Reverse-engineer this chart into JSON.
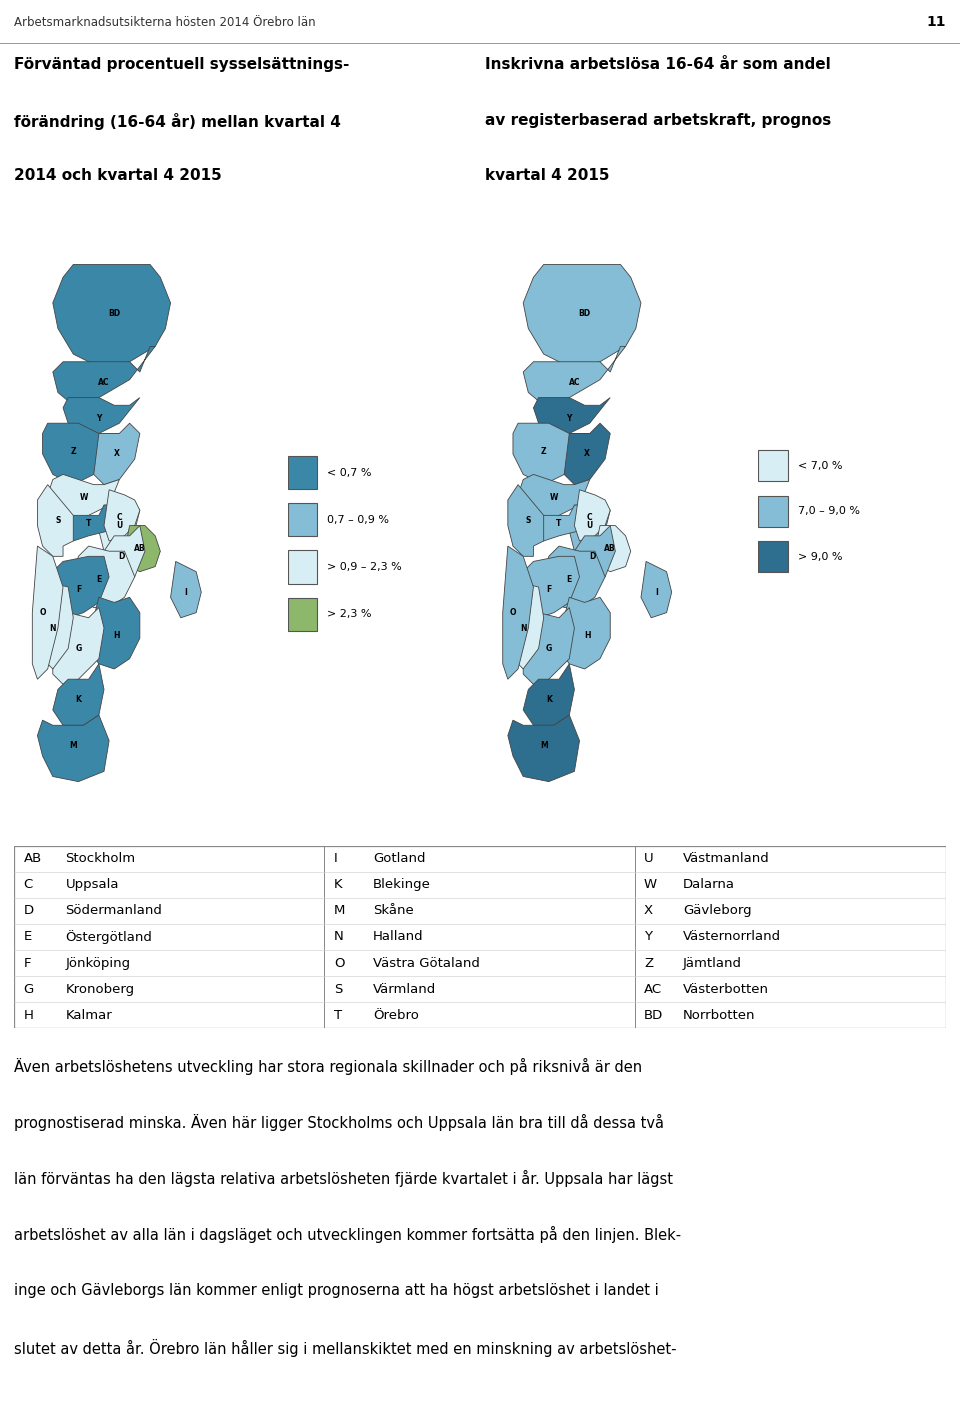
{
  "header_text": "Arbetsmarknadsutsikterna hösten 2014 Örebro län",
  "page_number": "11",
  "left_title": "Förväntad procentuell sysselsättnings-\nförändring (16-64 år) mellan kvartal 4\n2014 och kvartal 4 2015",
  "right_title": "Inskrivna arbetslösa 16-64 år som andel\nav registerbaserad arbetskraft, prognos\nkvartal 4 2015",
  "left_legend": [
    {
      "label": "< 0,7 %",
      "color": "#3a87a8"
    },
    {
      "label": "0,7 – 0,9 %",
      "color": "#84bdd5"
    },
    {
      "label": "> 0,9 – 2,3 %",
      "color": "#d8eef5"
    },
    {
      "label": "> 2,3 %",
      "color": "#8db86b"
    }
  ],
  "right_legend": [
    {
      "label": "< 7,0 %",
      "color": "#d8eef5"
    },
    {
      "label": "7,0 – 9,0 %",
      "color": "#84bdd5"
    },
    {
      "label": "> 9,0 %",
      "color": "#2e6e8e"
    }
  ],
  "table_rows": [
    [
      "AB",
      "Stockholm",
      "I",
      "Gotland",
      "U",
      "Västmanland"
    ],
    [
      "C",
      "Uppsala",
      "K",
      "Blekinge",
      "W",
      "Dalarna"
    ],
    [
      "D",
      "Södermanland",
      "M",
      "Skåne",
      "X",
      "Gävleborg"
    ],
    [
      "E",
      "Östergötland",
      "N",
      "Halland",
      "Y",
      "Västernorrland"
    ],
    [
      "F",
      "Jönköping",
      "O",
      "Västra Götaland",
      "Z",
      "Jämtland"
    ],
    [
      "G",
      "Kronoberg",
      "S",
      "Värmland",
      "AC",
      "Västerbotten"
    ],
    [
      "H",
      "Kalmar",
      "T",
      "Örebro",
      "BD",
      "Norrbotten"
    ]
  ],
  "body_text_lines": [
    "Även arbetslöshetens utveckling har stora regionala skillnader och på riksnivå är den",
    "prognostiserad minska. Även här ligger Stockholms och Uppsala län bra till då dessa två",
    "län förväntas ha den lägsta relativa arbetslösheten fjärde kvartalet i år. Uppsala har lägst",
    "arbetslöshet av alla län i dagsläget och utvecklingen kommer fortsätta på den linjen. Blek-",
    "inge och Gävleborgs län kommer enligt prognoserna att ha högst arbetslöshet i landet i",
    "slutet av detta år. Örebro län håller sig i mellanskiktet med en minskning av arbetslöshet-"
  ],
  "background_color": "#ffffff",
  "text_color": "#000000",
  "left_map_colors": {
    "BD": "#3a87a8",
    "AC": "#3a87a8",
    "Y": "#3a87a8",
    "Z": "#3a87a8",
    "X": "#84bdd5",
    "W": "#d8eef5",
    "U": "#d8eef5",
    "T": "#3a87a8",
    "S": "#d8eef5",
    "AB": "#8db86b",
    "C": "#d8eef5",
    "D": "#d8eef5",
    "E": "#d8eef5",
    "I": "#84bdd5",
    "H": "#3a87a8",
    "F": "#3a87a8",
    "G": "#d8eef5",
    "N": "#d8eef5",
    "K": "#3a87a8",
    "M": "#3a87a8",
    "O": "#d8eef5"
  },
  "right_map_colors": {
    "BD": "#84bdd5",
    "AC": "#84bdd5",
    "Y": "#2e6e8e",
    "Z": "#84bdd5",
    "X": "#2e6e8e",
    "W": "#84bdd5",
    "U": "#84bdd5",
    "T": "#84bdd5",
    "S": "#84bdd5",
    "AB": "#d8eef5",
    "C": "#d8eef5",
    "D": "#84bdd5",
    "E": "#84bdd5",
    "I": "#84bdd5",
    "H": "#84bdd5",
    "F": "#84bdd5",
    "G": "#84bdd5",
    "N": "#d8eef5",
    "K": "#2e6e8e",
    "M": "#2e6e8e",
    "O": "#84bdd5"
  }
}
